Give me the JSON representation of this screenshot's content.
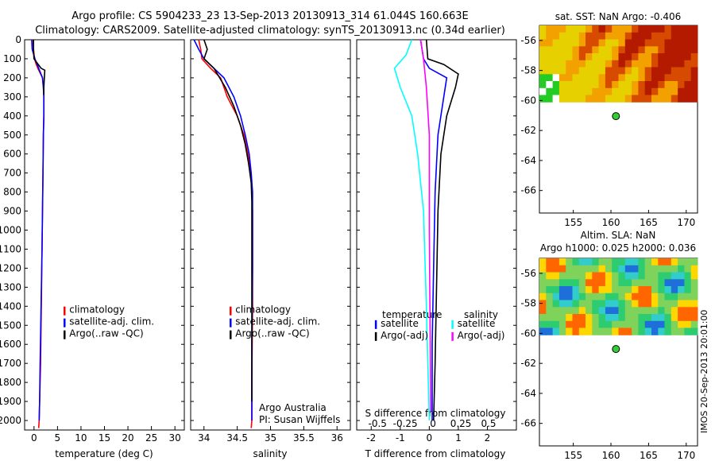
{
  "title_line1": "Argo profile: CS 5904233_23 13-Sep-2013 20130913_314 61.044S 160.663E",
  "title_line2": "Climatology: CARS2009. Satellite-adjusted climatology: synTS_20130913.nc (0.34d earlier)",
  "side_stamp": "IMOS 20-Sep-2013 20:01:00",
  "colors": {
    "climatology": "#ff0000",
    "satellite": "#0000ff",
    "argo": "#000000",
    "salinity_satellite": "#00ffff",
    "salinity_argo": "#ff00ff"
  },
  "chart_data": [
    {
      "type": "line",
      "id": "temperature",
      "xlabel": "temperature (deg C)",
      "xlim": [
        -2,
        32
      ],
      "ylim": [
        2050,
        0
      ],
      "xticks": [
        "0",
        "5",
        "10",
        "15",
        "20",
        "25",
        "30"
      ],
      "yticks": [
        "0",
        "100",
        "200",
        "300",
        "400",
        "500",
        "600",
        "700",
        "800",
        "900",
        "1000",
        "1100",
        "1200",
        "1300",
        "1400",
        "1500",
        "1600",
        "1700",
        "1800",
        "1900",
        "2000"
      ],
      "legend": [
        "climatology",
        "satellite-adj. clim.",
        "Argo(..raw -QC)"
      ],
      "series": [
        {
          "name": "climatology",
          "x": [
            -0.2,
            -0.1,
            0.1,
            0.4,
            0.8,
            1.3,
            1.8,
            2.0,
            2.1,
            2.1,
            2.0,
            1.9,
            1.8,
            1.7,
            1.6,
            1.5,
            1.4,
            1.3,
            1.2,
            1.1,
            1.0
          ],
          "y": [
            0,
            50,
            100,
            125,
            150,
            175,
            200,
            250,
            300,
            400,
            500,
            700,
            900,
            1100,
            1300,
            1500,
            1700,
            1800,
            1900,
            2000,
            2040
          ]
        },
        {
          "name": "satellite-adj. clim.",
          "x": [
            -0.5,
            -0.4,
            0.2,
            1.0,
            1.8,
            2.0,
            2.1,
            2.1,
            2.0,
            1.9,
            1.8,
            1.7,
            1.5,
            1.3,
            1.2,
            1.1
          ],
          "y": [
            0,
            50,
            100,
            150,
            200,
            250,
            300,
            400,
            500,
            700,
            900,
            1100,
            1400,
            1700,
            1900,
            2000
          ]
        },
        {
          "name": "Argo(..raw -QC)",
          "x": [
            -0.1,
            -0.1,
            0.0,
            1.5,
            2.3,
            2.2,
            2.1,
            2.1
          ],
          "y": [
            0,
            60,
            100,
            150,
            160,
            200,
            250,
            290
          ]
        }
      ]
    },
    {
      "type": "line",
      "id": "salinity",
      "xlabel": "salinity",
      "xlim": [
        33.8,
        36.2
      ],
      "ylim": [
        2050,
        0
      ],
      "xticks": [
        "34",
        "34.5",
        "35",
        "35.5",
        "36"
      ],
      "legend": [
        "climatology",
        "satellite-adj. clim.",
        "Argo(..raw -QC)"
      ],
      "notes": [
        "Argo Australia",
        "PI: Susan Wijffels"
      ],
      "series": [
        {
          "name": "climatology",
          "x": [
            33.92,
            33.95,
            33.97,
            34.1,
            34.25,
            34.35,
            34.5,
            34.6,
            34.66,
            34.7,
            34.72,
            34.73,
            34.73,
            34.73,
            34.72,
            34.72,
            34.71
          ],
          "y": [
            0,
            50,
            100,
            150,
            200,
            300,
            400,
            500,
            600,
            700,
            800,
            900,
            1000,
            1400,
            1800,
            2000,
            2040
          ]
        },
        {
          "name": "satellite-adj. clim.",
          "x": [
            33.85,
            33.92,
            34.0,
            34.15,
            34.3,
            34.45,
            34.55,
            34.62,
            34.68,
            34.71,
            34.73,
            34.73,
            34.73,
            34.72,
            34.72
          ],
          "y": [
            0,
            50,
            100,
            150,
            200,
            300,
            400,
            500,
            600,
            700,
            800,
            900,
            1200,
            1600,
            2000
          ]
        },
        {
          "name": "Argo(..raw -QC)",
          "x": [
            34.0,
            34.05,
            34.0,
            34.15,
            34.32,
            34.45,
            34.55,
            34.62,
            34.67,
            34.71,
            34.72,
            34.72,
            34.72,
            34.72
          ],
          "y": [
            0,
            50,
            100,
            150,
            250,
            350,
            450,
            550,
            650,
            750,
            850,
            1000,
            1400,
            1900
          ]
        }
      ]
    },
    {
      "type": "line",
      "id": "difference",
      "xlabel": "T difference from climatology",
      "xlabel2": "S difference from climatology",
      "xlim": [
        -2.5,
        3
      ],
      "ylim": [
        2050,
        0
      ],
      "xticks": [
        "-2",
        "-1",
        "0",
        "1",
        "2"
      ],
      "xticks2": [
        "-0.5",
        "-0.25",
        "0",
        "0.25",
        "0.5"
      ],
      "legend_headers": [
        "temperature",
        "salinity"
      ],
      "legend": [
        "satellite",
        "Argo(-adj)",
        "satellite",
        "Argo(-adj)"
      ],
      "series": [
        {
          "name": "satellite",
          "x": [
            -0.3,
            -0.2,
            0.0,
            0.6,
            0.5,
            0.3,
            0.2,
            0.15,
            0.1,
            0.1
          ],
          "y": [
            0,
            100,
            150,
            200,
            300,
            500,
            800,
            1200,
            1600,
            2000
          ]
        },
        {
          "name": "Argo(-adj)",
          "x": [
            -0.1,
            -0.05,
            0.5,
            1.0,
            0.9,
            0.6,
            0.4,
            0.3,
            0.25,
            0.2,
            0.15
          ],
          "y": [
            0,
            100,
            130,
            180,
            250,
            400,
            600,
            900,
            1300,
            1700,
            2000
          ]
        },
        {
          "name": "satellite",
          "x": [
            -0.6,
            -0.8,
            -1.2,
            -1.0,
            -0.6,
            -0.4,
            -0.2,
            -0.1,
            0.0
          ],
          "y": [
            0,
            80,
            150,
            250,
            400,
            600,
            900,
            1400,
            2000
          ]
        },
        {
          "name": "Argo(-adj)",
          "x": [
            -0.3,
            -0.2,
            -0.1,
            0.0,
            0.0,
            0.05
          ],
          "y": [
            0,
            100,
            250,
            500,
            1000,
            1950
          ]
        }
      ]
    },
    {
      "type": "heatmap",
      "id": "sst_map",
      "title": "sat. SST: NaN Argo: -0.406",
      "xlim": [
        150.5,
        171.5
      ],
      "ylim": [
        -67.5,
        -55
      ],
      "xticks": [
        "155",
        "160",
        "165",
        "170"
      ],
      "yticks": [
        "-56",
        "-58",
        "-60",
        "-62",
        "-64",
        "-66"
      ],
      "argo_position": {
        "lon": 160.663,
        "lat": -61.044
      }
    },
    {
      "type": "heatmap",
      "id": "sla_map",
      "title": "Altim. SLA: NaN",
      "subtitle": "Argo h1000: 0.025 h2000: 0.036",
      "xlim": [
        150.5,
        171.5
      ],
      "ylim": [
        -67.5,
        -55
      ],
      "xticks": [
        "155",
        "160",
        "165",
        "170"
      ],
      "yticks": [
        "-56",
        "-58",
        "-60",
        "-62",
        "-64",
        "-66"
      ],
      "argo_position": {
        "lon": 160.663,
        "lat": -61.044
      }
    }
  ]
}
